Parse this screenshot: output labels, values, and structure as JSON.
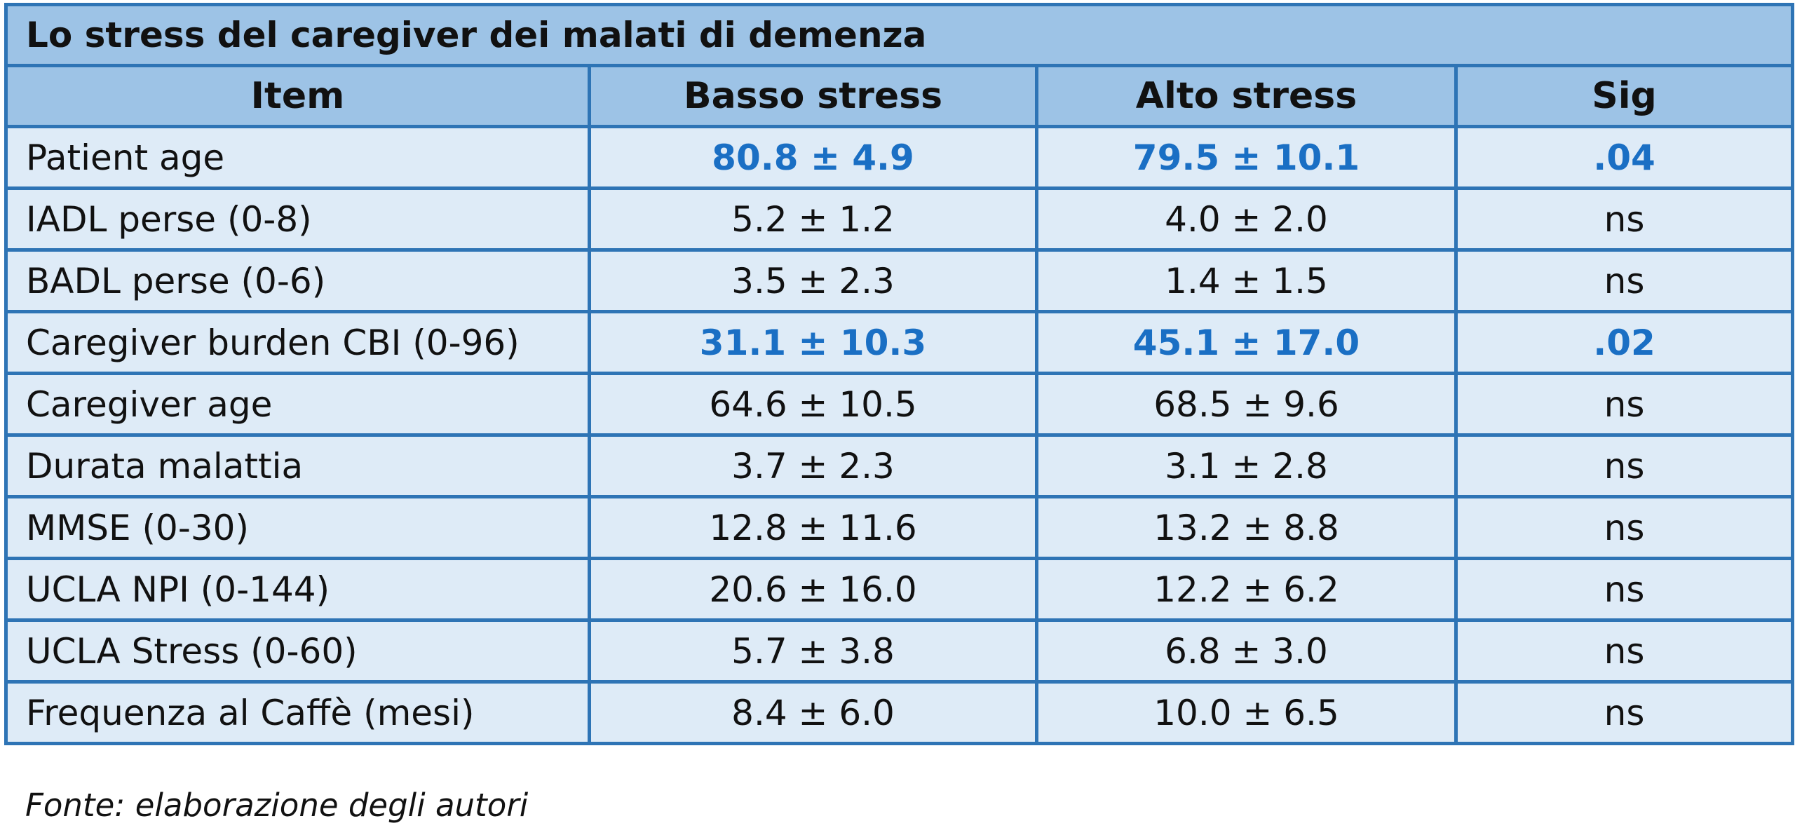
{
  "table": {
    "title": "Lo stress del caregiver dei malati di demenza",
    "headers": [
      "Item",
      "Basso stress",
      "Alto stress",
      "Sig"
    ],
    "rows": [
      {
        "item": "Patient age",
        "basso": "80.8 ± 4.9",
        "alto": "79.5 ± 10.1",
        "sig": ".04",
        "highlight": true
      },
      {
        "item": "IADL perse (0-8)",
        "basso": "5.2 ± 1.2",
        "alto": "4.0 ± 2.0",
        "sig": "ns",
        "highlight": false
      },
      {
        "item": "BADL perse (0-6)",
        "basso": "3.5 ± 2.3",
        "alto": "1.4 ± 1.5",
        "sig": "ns",
        "highlight": false
      },
      {
        "item": "Caregiver burden CBI (0-96)",
        "basso": "31.1 ± 10.3",
        "alto": "45.1 ± 17.0",
        "sig": ".02",
        "highlight": true
      },
      {
        "item": "Caregiver age",
        "basso": "64.6 ± 10.5",
        "alto": "68.5 ± 9.6",
        "sig": "ns",
        "highlight": false
      },
      {
        "item": "Durata malattia",
        "basso": "3.7 ± 2.3",
        "alto": "3.1 ± 2.8",
        "sig": "ns",
        "highlight": false
      },
      {
        "item": "MMSE (0-30)",
        "basso": "12.8 ± 11.6",
        "alto": "13.2 ± 8.8",
        "sig": "ns",
        "highlight": false
      },
      {
        "item": "UCLA NPI (0-144)",
        "basso": "20.6 ± 16.0",
        "alto": "12.2 ± 6.2",
        "sig": "ns",
        "highlight": false
      },
      {
        "item": "UCLA Stress (0-60)",
        "basso": "5.7 ± 3.8",
        "alto": "6.8 ± 3.0",
        "sig": "ns",
        "highlight": false
      },
      {
        "item": "Frequenza al Caffè (mesi)",
        "basso": "8.4 ± 6.0",
        "alto": "10.0 ± 6.5",
        "sig": "ns",
        "highlight": false
      }
    ]
  },
  "caption": "Fonte: elaborazione degli autori",
  "colors": {
    "border": "#2e74b5",
    "header_bg": "#9dc3e6",
    "row_bg": "#deebf7",
    "highlight_text": "#1a6fc4"
  }
}
